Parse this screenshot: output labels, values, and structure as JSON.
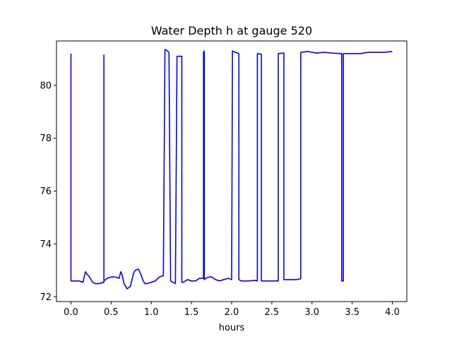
{
  "chart_data": {
    "type": "line",
    "title": "Water Depth h at gauge 520",
    "xlabel": "hours",
    "ylabel": "",
    "xlim": [
      -0.18,
      4.18
    ],
    "ylim": [
      71.82,
      81.68
    ],
    "x_ticks": [
      0.0,
      0.5,
      1.0,
      1.5,
      2.0,
      2.5,
      3.0,
      3.5,
      4.0
    ],
    "x_tick_labels": [
      "0.0",
      "0.5",
      "1.0",
      "1.5",
      "2.0",
      "2.5",
      "3.0",
      "3.5",
      "4.0"
    ],
    "y_ticks": [
      72,
      74,
      76,
      78,
      80
    ],
    "y_tick_labels": [
      "72",
      "74",
      "76",
      "78",
      "80"
    ],
    "grid": false,
    "series": [
      {
        "color": "#0000ff",
        "x": [
          0.0,
          0.0,
          0.02,
          0.1,
          0.15,
          0.18,
          0.2,
          0.22,
          0.27,
          0.3,
          0.35,
          0.41,
          0.41,
          0.41,
          0.41,
          0.45,
          0.5,
          0.55,
          0.6,
          0.62,
          0.64,
          0.66,
          0.68,
          0.7,
          0.74,
          0.78,
          0.8,
          0.84,
          0.87,
          0.9,
          0.92,
          0.95,
          1.0,
          1.05,
          1.1,
          1.15,
          1.17,
          1.18,
          1.18,
          1.22,
          1.24,
          1.24,
          1.3,
          1.32,
          1.32,
          1.38,
          1.38,
          1.4,
          1.45,
          1.5,
          1.55,
          1.6,
          1.65,
          1.65,
          1.66,
          1.66,
          1.68,
          1.72,
          1.75,
          1.8,
          1.85,
          1.9,
          1.96,
          2.0,
          2.01,
          2.01,
          2.09,
          2.09,
          2.12,
          2.2,
          2.3,
          2.32,
          2.32,
          2.37,
          2.37,
          2.4,
          2.5,
          2.58,
          2.58,
          2.65,
          2.65,
          2.7,
          2.8,
          2.86,
          2.86,
          2.95,
          3.05,
          3.15,
          3.25,
          3.37,
          3.37,
          3.39,
          3.39,
          3.5,
          3.6,
          3.7,
          3.8,
          3.9,
          4.0
        ],
        "y": [
          81.2,
          72.6,
          72.6,
          72.6,
          72.55,
          72.95,
          72.85,
          72.8,
          72.55,
          72.5,
          72.5,
          72.55,
          81.15,
          72.55,
          72.6,
          72.7,
          72.75,
          72.75,
          72.7,
          72.95,
          72.8,
          72.5,
          72.4,
          72.3,
          72.4,
          72.9,
          73.0,
          73.05,
          72.85,
          72.6,
          72.5,
          72.5,
          72.55,
          72.6,
          72.75,
          72.8,
          81.35,
          81.35,
          81.35,
          81.25,
          72.7,
          72.6,
          72.5,
          81.1,
          81.1,
          81.1,
          72.55,
          72.55,
          72.65,
          72.6,
          72.6,
          72.7,
          72.7,
          81.25,
          81.3,
          72.65,
          72.7,
          72.75,
          72.75,
          72.65,
          72.6,
          72.65,
          72.7,
          72.65,
          81.3,
          81.3,
          81.2,
          72.65,
          72.6,
          72.6,
          72.62,
          72.6,
          81.2,
          81.18,
          72.6,
          72.6,
          72.6,
          72.6,
          81.2,
          81.22,
          72.65,
          72.65,
          72.65,
          72.68,
          81.25,
          81.28,
          81.22,
          81.25,
          81.22,
          81.2,
          72.6,
          72.6,
          81.2,
          81.2,
          81.2,
          81.25,
          81.25,
          81.25,
          81.28
        ]
      }
    ]
  }
}
